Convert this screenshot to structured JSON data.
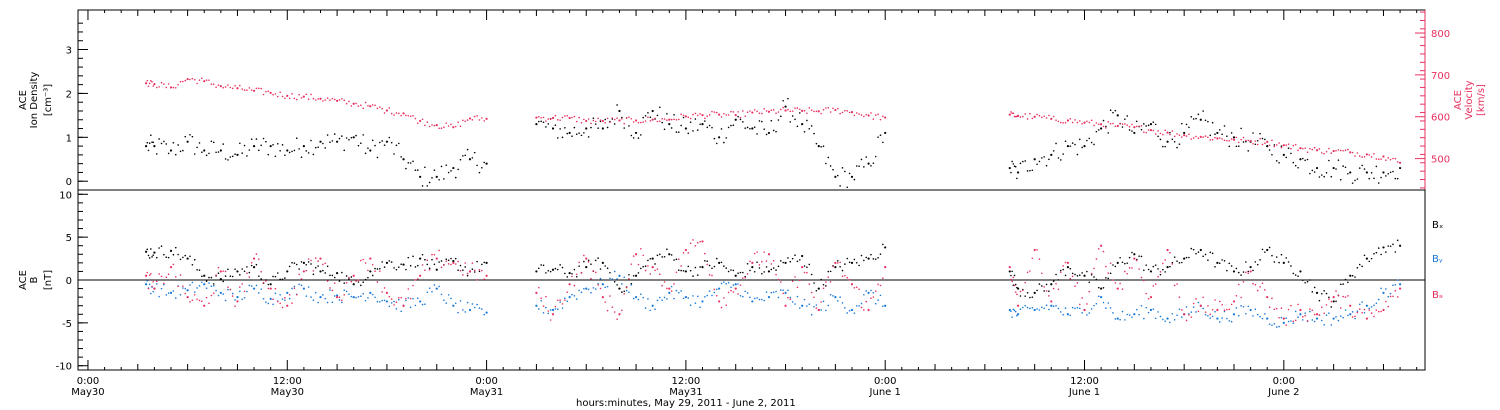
{
  "chart_data": [
    {
      "type": "scatter",
      "panel": "top",
      "ylabel_lines": [
        "ACE",
        "Ion Density",
        "[cm⁻³]"
      ],
      "ylim": [
        -0.2,
        3.9
      ],
      "yticks": [
        0,
        1,
        2,
        3
      ],
      "ylabel_right_lines": [
        "ACE",
        "Velocity",
        "[km/s]"
      ],
      "ylim_right": [
        425,
        855
      ],
      "yticks_right": [
        500,
        600,
        700,
        800
      ],
      "grid": false,
      "series": [
        {
          "name": "Ion Density",
          "axis": "left",
          "color": "#000000",
          "segments": [
            {
              "x": [
                3.5,
                4,
                5,
                6,
                7,
                8,
                9,
                10,
                11,
                12,
                13,
                14,
                15,
                16,
                17,
                18,
                19,
                20,
                21,
                22,
                23,
                24
              ],
              "y": [
                0.8,
                0.8,
                0.7,
                0.9,
                0.7,
                0.7,
                0.6,
                0.8,
                0.8,
                0.7,
                0.8,
                0.9,
                0.9,
                1.0,
                0.7,
                0.9,
                0.5,
                0.1,
                0.1,
                0.3,
                0.5,
                0.4
              ]
            },
            {
              "x": [
                27,
                28,
                29,
                30,
                31,
                32,
                33,
                34,
                35,
                36,
                37,
                38,
                39,
                40,
                41,
                42,
                43,
                44,
                45,
                46,
                47,
                48
              ],
              "y": [
                1.3,
                1.2,
                1.1,
                1.2,
                1.2,
                1.6,
                1.1,
                1.6,
                1.3,
                1.2,
                1.3,
                1.0,
                1.4,
                1.2,
                1.1,
                1.7,
                1.3,
                0.8,
                0.1,
                0.1,
                0.4,
                1.1
              ]
            },
            {
              "x": [
                55.5,
                56,
                57,
                58,
                59,
                60,
                61,
                62,
                63,
                64,
                65,
                66,
                67,
                68,
                69,
                70,
                71,
                72,
                73,
                74,
                75,
                76,
                77,
                78,
                79
              ],
              "y": [
                0.3,
                0.2,
                0.5,
                0.6,
                0.8,
                0.8,
                1.2,
                1.5,
                1.1,
                1.3,
                0.9,
                1.1,
                1.4,
                1.1,
                1.0,
                0.9,
                0.8,
                0.6,
                0.5,
                0.3,
                0.3,
                0.2,
                0.2,
                0.2,
                0.3
              ]
            }
          ]
        },
        {
          "name": "Velocity",
          "axis": "right",
          "color": "#e8305e",
          "segments": [
            {
              "x": [
                3.5,
                4,
                5,
                6,
                7,
                8,
                9,
                10,
                11,
                12,
                13,
                14,
                15,
                16,
                17,
                18,
                19,
                20,
                21,
                22,
                23,
                24
              ],
              "y": [
                680,
                678,
                670,
                690,
                685,
                673,
                668,
                662,
                657,
                650,
                648,
                643,
                638,
                631,
                625,
                615,
                608,
                590,
                580,
                575,
                596,
                595
              ]
            },
            {
              "x": [
                27,
                28,
                29,
                30,
                31,
                32,
                33,
                34,
                35,
                36,
                37,
                38,
                39,
                40,
                41,
                42,
                43,
                44,
                45,
                46,
                47,
                48
              ],
              "y": [
                598,
                597,
                597,
                590,
                590,
                591,
                591,
                593,
                593,
                601,
                604,
                605,
                604,
                610,
                612,
                615,
                614,
                613,
                616,
                611,
                603,
                598
              ]
            },
            {
              "x": [
                55.5,
                56,
                57,
                58,
                59,
                60,
                61,
                62,
                63,
                64,
                65,
                66,
                67,
                68,
                69,
                70,
                71,
                72,
                73,
                74,
                75,
                76,
                77,
                78,
                79
              ],
              "y": [
                605,
                602,
                600,
                595,
                591,
                586,
                582,
                578,
                575,
                568,
                562,
                556,
                552,
                548,
                545,
                542,
                540,
                532,
                525,
                520,
                518,
                515,
                510,
                505,
                490
              ]
            }
          ]
        }
      ]
    },
    {
      "type": "scatter",
      "panel": "bottom",
      "ylabel_lines": [
        "ACE",
        "B",
        "[nT]"
      ],
      "ylim": [
        -10.5,
        10.5
      ],
      "yticks": [
        -10,
        -5,
        0,
        5,
        10
      ],
      "zero_line": true,
      "grid": false,
      "legend": [
        "Bₓ",
        "Bᵧ",
        "Bₔ"
      ],
      "legend_placement": "right",
      "series": [
        {
          "name": "Bx",
          "color": "#000000",
          "segments": [
            {
              "x": [
                3.5,
                4,
                5,
                6,
                7,
                8,
                9,
                10,
                11,
                12,
                13,
                14,
                15,
                16,
                17,
                18,
                19,
                20,
                21,
                22,
                23,
                24
              ],
              "y": [
                3.3,
                3.2,
                3.4,
                2.5,
                0.5,
                0.1,
                1.0,
                1.5,
                -0.5,
                1.0,
                2.0,
                1.0,
                0.8,
                -0.5,
                1.0,
                2.0,
                1.8,
                2.5,
                1.2,
                2.2,
                1.0,
                2.0
              ]
            },
            {
              "x": [
                27,
                28,
                29,
                30,
                31,
                32,
                33,
                34,
                35,
                36,
                37,
                38,
                39,
                40,
                41,
                42,
                43,
                44,
                45,
                46,
                47,
                48
              ],
              "y": [
                1.0,
                1.2,
                0.8,
                1.5,
                2.0,
                -1.0,
                0.5,
                2.5,
                3.0,
                1.0,
                1.5,
                2.0,
                0.5,
                1.5,
                1.0,
                2.0,
                2.8,
                -1.0,
                1.5,
                2.0,
                2.5,
                3.8
              ]
            },
            {
              "x": [
                55.5,
                56,
                57,
                58,
                59,
                60,
                61,
                62,
                63,
                64,
                65,
                66,
                67,
                68,
                69,
                70,
                71,
                72,
                73,
                74,
                75,
                76,
                77,
                78,
                79
              ],
              "y": [
                1.0,
                -1.0,
                -1.5,
                -0.5,
                1.5,
                0.5,
                -1.0,
                2.0,
                3.0,
                1.0,
                1.5,
                2.5,
                3.5,
                2.0,
                1.0,
                1.5,
                3.5,
                2.0,
                1.0,
                -1.5,
                -2.5,
                0.5,
                2.5,
                3.8,
                4.0
              ]
            }
          ]
        },
        {
          "name": "By",
          "color": "#1878d8",
          "segments": [
            {
              "x": [
                3.5,
                4,
                5,
                6,
                7,
                8,
                9,
                10,
                11,
                12,
                13,
                14,
                15,
                16,
                17,
                18,
                19,
                20,
                21,
                22,
                23,
                24
              ],
              "y": [
                -0.5,
                -1.0,
                -1.5,
                -1.2,
                -0.5,
                -1.5,
                -2.0,
                -1.0,
                -2.2,
                -1.5,
                -1.0,
                -2.0,
                -1.8,
                -2.0,
                -1.5,
                -2.5,
                -3.0,
                -2.5,
                -1.0,
                -3.0,
                -3.5,
                -3.8
              ]
            },
            {
              "x": [
                27,
                28,
                29,
                30,
                31,
                32,
                33,
                34,
                35,
                36,
                37,
                38,
                39,
                40,
                41,
                42,
                43,
                44,
                45,
                46,
                47,
                48
              ],
              "y": [
                -3.0,
                -3.5,
                -2.0,
                -1.0,
                -0.5,
                0.5,
                -2.0,
                -3.0,
                -1.5,
                -2.0,
                -2.5,
                -1.0,
                -0.5,
                -2.5,
                -2.0,
                -1.5,
                -3.0,
                -3.5,
                -2.0,
                -3.5,
                -1.5,
                -3.0
              ]
            },
            {
              "x": [
                55.5,
                56,
                57,
                58,
                59,
                60,
                61,
                62,
                63,
                64,
                65,
                66,
                67,
                68,
                69,
                70,
                71,
                72,
                73,
                74,
                75,
                76,
                77,
                78,
                79
              ],
              "y": [
                -3.5,
                -4.0,
                -3.5,
                -3.0,
                -4.0,
                -3.5,
                -2.0,
                -4.5,
                -4.0,
                -3.5,
                -4.5,
                -4.0,
                -3.0,
                -4.5,
                -4.0,
                -3.5,
                -4.5,
                -5.0,
                -4.0,
                -4.5,
                -4.5,
                -4.0,
                -3.0,
                -1.5,
                -0.5
              ]
            }
          ]
        },
        {
          "name": "Bz",
          "color": "#e8305e",
          "segments": [
            {
              "x": [
                3.5,
                4,
                5,
                6,
                7,
                8,
                9,
                10,
                11,
                12,
                13,
                14,
                15,
                16,
                17,
                18,
                19,
                20,
                21,
                22,
                23,
                24
              ],
              "y": [
                0.5,
                -1.0,
                1.5,
                -2.0,
                -3.0,
                1.0,
                -2.5,
                2.5,
                -1.0,
                -3.0,
                1.0,
                2.5,
                -2.0,
                0.5,
                2.5,
                -1.5,
                -3.0,
                0.5,
                2.5,
                2.0,
                1.0,
                0.5
              ]
            },
            {
              "x": [
                27,
                28,
                29,
                30,
                31,
                32,
                33,
                34,
                35,
                36,
                37,
                38,
                39,
                40,
                41,
                42,
                43,
                44,
                45,
                46,
                47,
                48
              ],
              "y": [
                -1.5,
                -4.0,
                -0.5,
                2.5,
                -2.0,
                -4.0,
                3.0,
                1.5,
                -1.0,
                3.5,
                4.5,
                -2.5,
                -1.0,
                2.0,
                3.0,
                -3.0,
                1.5,
                -3.5,
                2.0,
                -0.5,
                -3.5,
                1.5
              ]
            },
            {
              "x": [
                55.5,
                56,
                57,
                58,
                59,
                60,
                61,
                62,
                63,
                64,
                65,
                66,
                67,
                68,
                69,
                70,
                71,
                72,
                73,
                74,
                75,
                76,
                77,
                78,
                79
              ],
              "y": [
                1.5,
                -3.0,
                3.5,
                -2.5,
                2.0,
                -3.5,
                4.0,
                -1.0,
                2.5,
                -2.0,
                3.5,
                -4.0,
                -3.0,
                -3.5,
                -2.5,
                1.0,
                -2.0,
                -4.5,
                -3.5,
                -4.0,
                -2.0,
                -3.0,
                -4.5,
                -3.5,
                -1.0
              ]
            }
          ]
        }
      ]
    }
  ],
  "time_axis": {
    "xlim": [
      -0.6,
      80.5
    ],
    "ticks": [
      {
        "x": 0,
        "time": "0:00",
        "date": "May30"
      },
      {
        "x": 12,
        "time": "12:00",
        "date": "May30"
      },
      {
        "x": 24,
        "time": "0:00",
        "date": "May31"
      },
      {
        "x": 36,
        "time": "12:00",
        "date": "May31"
      },
      {
        "x": 48,
        "time": "0:00",
        "date": "June 1"
      },
      {
        "x": 60,
        "time": "12:00",
        "date": "June 1"
      },
      {
        "x": 72,
        "time": "0:00",
        "date": "June 2"
      }
    ],
    "xlabel": "hours:minutes, May 29, 2011 - June  2, 2011"
  },
  "colors": {
    "ion_density": "#000000",
    "velocity": "#e8305e",
    "bx": "#000000",
    "by": "#1878d8",
    "bz": "#e8305e",
    "axes": "#000000"
  }
}
